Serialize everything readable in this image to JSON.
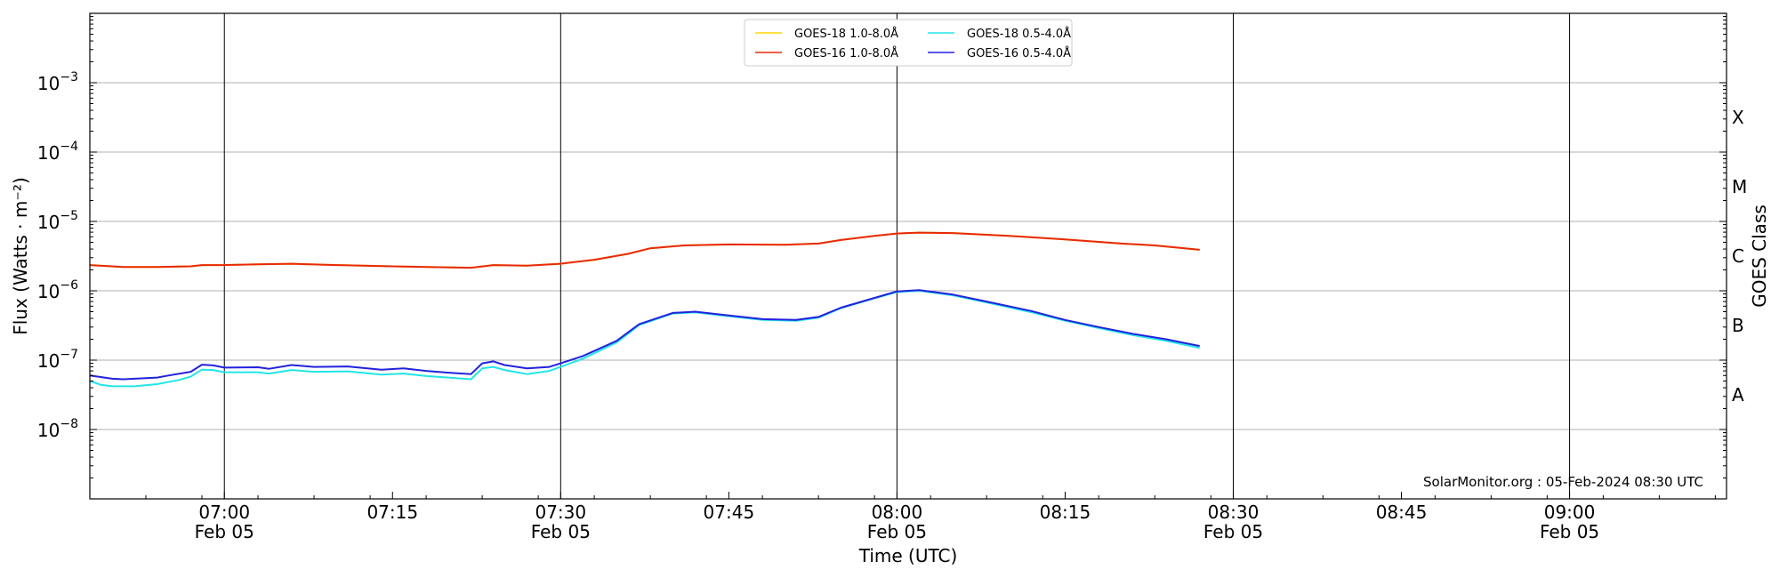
{
  "chart_data": {
    "type": "line",
    "title": "",
    "xlabel": "Time (UTC)",
    "ylabel": "Flux (Watts · m⁻²)",
    "ylabel_right": "GOES Class",
    "yscale": "log",
    "ylim": [
      1e-09,
      0.01
    ],
    "xlim": [
      "2024-02-05 06:48",
      "2024-02-05 09:14"
    ],
    "grid": "horizontal at each power of ten; vertical lines at each half hour",
    "legend_position": "top-center",
    "x_ticks": [
      {
        "time": "2024-02-05 07:00",
        "label": "07:00",
        "sublabel": "Feb 05",
        "major": true
      },
      {
        "time": "2024-02-05 07:15",
        "label": "07:15",
        "sublabel": "",
        "major": false
      },
      {
        "time": "2024-02-05 07:30",
        "label": "07:30",
        "sublabel": "Feb 05",
        "major": true
      },
      {
        "time": "2024-02-05 07:45",
        "label": "07:45",
        "sublabel": "",
        "major": false
      },
      {
        "time": "2024-02-05 08:00",
        "label": "08:00",
        "sublabel": "Feb 05",
        "major": true
      },
      {
        "time": "2024-02-05 08:15",
        "label": "08:15",
        "sublabel": "",
        "major": false
      },
      {
        "time": "2024-02-05 08:30",
        "label": "08:30",
        "sublabel": "Feb 05",
        "major": true
      },
      {
        "time": "2024-02-05 08:45",
        "label": "08:45",
        "sublabel": "",
        "major": false
      },
      {
        "time": "2024-02-05 09:00",
        "label": "09:00",
        "sublabel": "Feb 05",
        "major": true
      }
    ],
    "y_ticks": [
      {
        "value": 1e-08,
        "base": "10",
        "exp": "−8"
      },
      {
        "value": 1e-07,
        "base": "10",
        "exp": "−7"
      },
      {
        "value": 1e-06,
        "base": "10",
        "exp": "−6"
      },
      {
        "value": 1e-05,
        "base": "10",
        "exp": "−5"
      },
      {
        "value": 0.0001,
        "base": "10",
        "exp": "−4"
      },
      {
        "value": 0.001,
        "base": "10",
        "exp": "−3"
      }
    ],
    "goes_classes": [
      {
        "label": "A",
        "value": 3.16e-08
      },
      {
        "label": "B",
        "value": 3.16e-07
      },
      {
        "label": "C",
        "value": 3.16e-06
      },
      {
        "label": "M",
        "value": 3.16e-05
      },
      {
        "label": "X",
        "value": 0.000316
      }
    ],
    "series": [
      {
        "name": "GOES-18 1.0-8.0Å",
        "color": "#ffd700",
        "points": [
          [
            "2024-02-05 06:48",
            2.35e-06
          ],
          [
            "2024-02-05 06:51",
            2.2e-06
          ],
          [
            "2024-02-05 06:54",
            2.2e-06
          ],
          [
            "2024-02-05 06:57",
            2.25e-06
          ],
          [
            "2024-02-05 06:58",
            2.35e-06
          ],
          [
            "2024-02-05 07:00",
            2.35e-06
          ],
          [
            "2024-02-05 07:03",
            2.4e-06
          ],
          [
            "2024-02-05 07:06",
            2.45e-06
          ],
          [
            "2024-02-05 07:10",
            2.35e-06
          ],
          [
            "2024-02-05 07:15",
            2.25e-06
          ],
          [
            "2024-02-05 07:18",
            2.2e-06
          ],
          [
            "2024-02-05 07:22",
            2.15e-06
          ],
          [
            "2024-02-05 07:24",
            2.35e-06
          ],
          [
            "2024-02-05 07:27",
            2.3e-06
          ],
          [
            "2024-02-05 07:30",
            2.45e-06
          ],
          [
            "2024-02-05 07:33",
            2.8e-06
          ],
          [
            "2024-02-05 07:36",
            3.4e-06
          ],
          [
            "2024-02-05 07:38",
            4.1e-06
          ],
          [
            "2024-02-05 07:41",
            4.5e-06
          ],
          [
            "2024-02-05 07:45",
            4.65e-06
          ],
          [
            "2024-02-05 07:50",
            4.6e-06
          ],
          [
            "2024-02-05 07:53",
            4.8e-06
          ],
          [
            "2024-02-05 07:55",
            5.4e-06
          ],
          [
            "2024-02-05 07:58",
            6.2e-06
          ],
          [
            "2024-02-05 08:00",
            6.7e-06
          ],
          [
            "2024-02-05 08:02",
            6.9e-06
          ],
          [
            "2024-02-05 08:05",
            6.8e-06
          ],
          [
            "2024-02-05 08:10",
            6.2e-06
          ],
          [
            "2024-02-05 08:15",
            5.5e-06
          ],
          [
            "2024-02-05 08:20",
            4.8e-06
          ],
          [
            "2024-02-05 08:23",
            4.5e-06
          ],
          [
            "2024-02-05 08:27",
            3.9e-06
          ]
        ]
      },
      {
        "name": "GOES-16 1.0-8.0Å",
        "color": "#e8290b",
        "points": [
          [
            "2024-02-05 06:48",
            2.35e-06
          ],
          [
            "2024-02-05 06:51",
            2.2e-06
          ],
          [
            "2024-02-05 06:54",
            2.2e-06
          ],
          [
            "2024-02-05 06:57",
            2.25e-06
          ],
          [
            "2024-02-05 06:58",
            2.35e-06
          ],
          [
            "2024-02-05 07:00",
            2.35e-06
          ],
          [
            "2024-02-05 07:03",
            2.4e-06
          ],
          [
            "2024-02-05 07:06",
            2.45e-06
          ],
          [
            "2024-02-05 07:10",
            2.35e-06
          ],
          [
            "2024-02-05 07:15",
            2.25e-06
          ],
          [
            "2024-02-05 07:18",
            2.2e-06
          ],
          [
            "2024-02-05 07:22",
            2.15e-06
          ],
          [
            "2024-02-05 07:24",
            2.35e-06
          ],
          [
            "2024-02-05 07:27",
            2.3e-06
          ],
          [
            "2024-02-05 07:30",
            2.45e-06
          ],
          [
            "2024-02-05 07:33",
            2.8e-06
          ],
          [
            "2024-02-05 07:36",
            3.4e-06
          ],
          [
            "2024-02-05 07:38",
            4.1e-06
          ],
          [
            "2024-02-05 07:41",
            4.5e-06
          ],
          [
            "2024-02-05 07:45",
            4.65e-06
          ],
          [
            "2024-02-05 07:50",
            4.6e-06
          ],
          [
            "2024-02-05 07:53",
            4.8e-06
          ],
          [
            "2024-02-05 07:55",
            5.4e-06
          ],
          [
            "2024-02-05 07:58",
            6.2e-06
          ],
          [
            "2024-02-05 08:00",
            6.7e-06
          ],
          [
            "2024-02-05 08:02",
            6.9e-06
          ],
          [
            "2024-02-05 08:05",
            6.8e-06
          ],
          [
            "2024-02-05 08:10",
            6.2e-06
          ],
          [
            "2024-02-05 08:15",
            5.5e-06
          ],
          [
            "2024-02-05 08:20",
            4.8e-06
          ],
          [
            "2024-02-05 08:23",
            4.5e-06
          ],
          [
            "2024-02-05 08:27",
            3.9e-06
          ]
        ]
      },
      {
        "name": "GOES-18 0.5-4.0Å",
        "color": "#22e5e8",
        "points": [
          [
            "2024-02-05 06:48",
            5e-08
          ],
          [
            "2024-02-05 06:49",
            4.4e-08
          ],
          [
            "2024-02-05 06:50",
            4.2e-08
          ],
          [
            "2024-02-05 06:52",
            4.2e-08
          ],
          [
            "2024-02-05 06:54",
            4.5e-08
          ],
          [
            "2024-02-05 06:56",
            5.2e-08
          ],
          [
            "2024-02-05 06:57",
            5.8e-08
          ],
          [
            "2024-02-05 06:58",
            7.3e-08
          ],
          [
            "2024-02-05 06:59",
            7.2e-08
          ],
          [
            "2024-02-05 07:00",
            6.7e-08
          ],
          [
            "2024-02-05 07:03",
            6.7e-08
          ],
          [
            "2024-02-05 07:04",
            6.4e-08
          ],
          [
            "2024-02-05 07:06",
            7.2e-08
          ],
          [
            "2024-02-05 07:08",
            6.8e-08
          ],
          [
            "2024-02-05 07:11",
            6.9e-08
          ],
          [
            "2024-02-05 07:14",
            6.2e-08
          ],
          [
            "2024-02-05 07:16",
            6.4e-08
          ],
          [
            "2024-02-05 07:18",
            5.9e-08
          ],
          [
            "2024-02-05 07:20",
            5.6e-08
          ],
          [
            "2024-02-05 07:22",
            5.3e-08
          ],
          [
            "2024-02-05 07:23",
            7.6e-08
          ],
          [
            "2024-02-05 07:24",
            8e-08
          ],
          [
            "2024-02-05 07:25",
            7.2e-08
          ],
          [
            "2024-02-05 07:27",
            6.3e-08
          ],
          [
            "2024-02-05 07:29",
            7e-08
          ],
          [
            "2024-02-05 07:30",
            8e-08
          ],
          [
            "2024-02-05 07:32",
            1.05e-07
          ],
          [
            "2024-02-05 07:35",
            1.8e-07
          ],
          [
            "2024-02-05 07:37",
            3.2e-07
          ],
          [
            "2024-02-05 07:40",
            4.7e-07
          ],
          [
            "2024-02-05 07:42",
            4.9e-07
          ],
          [
            "2024-02-05 07:45",
            4.3e-07
          ],
          [
            "2024-02-05 07:48",
            3.8e-07
          ],
          [
            "2024-02-05 07:51",
            3.7e-07
          ],
          [
            "2024-02-05 07:53",
            4.1e-07
          ],
          [
            "2024-02-05 07:55",
            5.6e-07
          ],
          [
            "2024-02-05 07:58",
            7.8e-07
          ],
          [
            "2024-02-05 08:00",
            9.6e-07
          ],
          [
            "2024-02-05 08:02",
            1e-06
          ],
          [
            "2024-02-05 08:05",
            8.6e-07
          ],
          [
            "2024-02-05 08:08",
            6.8e-07
          ],
          [
            "2024-02-05 08:12",
            4.9e-07
          ],
          [
            "2024-02-05 08:15",
            3.7e-07
          ],
          [
            "2024-02-05 08:18",
            2.9e-07
          ],
          [
            "2024-02-05 08:21",
            2.3e-07
          ],
          [
            "2024-02-05 08:24",
            1.9e-07
          ],
          [
            "2024-02-05 08:27",
            1.5e-07
          ]
        ]
      },
      {
        "name": "GOES-16 0.5-4.0Å",
        "color": "#2222dd",
        "points": [
          [
            "2024-02-05 06:48",
            6e-08
          ],
          [
            "2024-02-05 06:50",
            5.4e-08
          ],
          [
            "2024-02-05 06:51",
            5.3e-08
          ],
          [
            "2024-02-05 06:54",
            5.6e-08
          ],
          [
            "2024-02-05 06:55",
            6e-08
          ],
          [
            "2024-02-05 06:57",
            6.8e-08
          ],
          [
            "2024-02-05 06:58",
            8.6e-08
          ],
          [
            "2024-02-05 06:59",
            8.4e-08
          ],
          [
            "2024-02-05 07:00",
            7.8e-08
          ],
          [
            "2024-02-05 07:03",
            7.9e-08
          ],
          [
            "2024-02-05 07:04",
            7.5e-08
          ],
          [
            "2024-02-05 07:06",
            8.5e-08
          ],
          [
            "2024-02-05 07:08",
            8e-08
          ],
          [
            "2024-02-05 07:11",
            8.1e-08
          ],
          [
            "2024-02-05 07:14",
            7.3e-08
          ],
          [
            "2024-02-05 07:16",
            7.6e-08
          ],
          [
            "2024-02-05 07:18",
            7e-08
          ],
          [
            "2024-02-05 07:20",
            6.6e-08
          ],
          [
            "2024-02-05 07:22",
            6.3e-08
          ],
          [
            "2024-02-05 07:23",
            9e-08
          ],
          [
            "2024-02-05 07:24",
            9.6e-08
          ],
          [
            "2024-02-05 07:25",
            8.5e-08
          ],
          [
            "2024-02-05 07:27",
            7.6e-08
          ],
          [
            "2024-02-05 07:29",
            8e-08
          ],
          [
            "2024-02-05 07:30",
            9e-08
          ],
          [
            "2024-02-05 07:32",
            1.15e-07
          ],
          [
            "2024-02-05 07:35",
            1.9e-07
          ],
          [
            "2024-02-05 07:37",
            3.3e-07
          ],
          [
            "2024-02-05 07:40",
            4.8e-07
          ],
          [
            "2024-02-05 07:42",
            5e-07
          ],
          [
            "2024-02-05 07:45",
            4.4e-07
          ],
          [
            "2024-02-05 07:48",
            3.9e-07
          ],
          [
            "2024-02-05 07:51",
            3.8e-07
          ],
          [
            "2024-02-05 07:53",
            4.2e-07
          ],
          [
            "2024-02-05 07:55",
            5.7e-07
          ],
          [
            "2024-02-05 07:58",
            7.9e-07
          ],
          [
            "2024-02-05 08:00",
            9.8e-07
          ],
          [
            "2024-02-05 08:02",
            1.02e-06
          ],
          [
            "2024-02-05 08:05",
            8.8e-07
          ],
          [
            "2024-02-05 08:08",
            7e-07
          ],
          [
            "2024-02-05 08:12",
            5.1e-07
          ],
          [
            "2024-02-05 08:15",
            3.8e-07
          ],
          [
            "2024-02-05 08:18",
            3e-07
          ],
          [
            "2024-02-05 08:21",
            2.4e-07
          ],
          [
            "2024-02-05 08:24",
            2e-07
          ],
          [
            "2024-02-05 08:27",
            1.6e-07
          ]
        ]
      }
    ],
    "annotation": "SolarMonitor.org : 05-Feb-2024 08:30 UTC"
  }
}
